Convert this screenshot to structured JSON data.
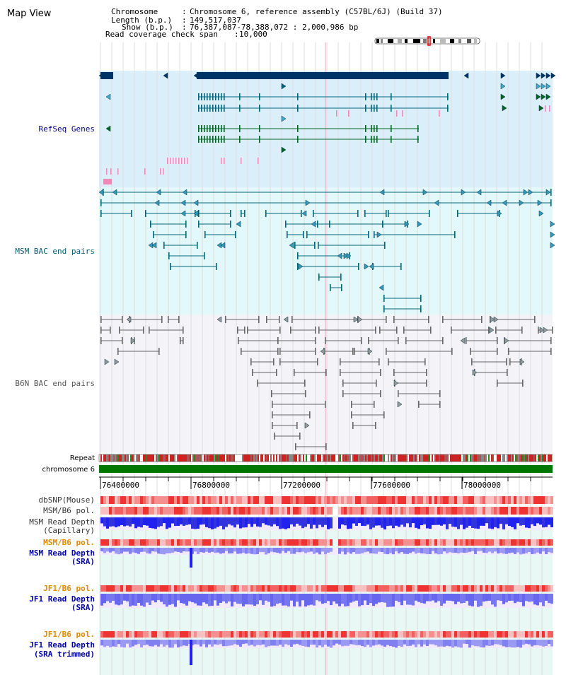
{
  "view_title": "Map View",
  "info": {
    "chromosome_key": "Chromosome",
    "chromosome_val": "Chromosome 6, reference assembly (C57BL/6J) (Build 37)",
    "length_key": "Length (b.p.)",
    "length_val": "149,517,037",
    "show_key": "Show (b.p.)",
    "show_val": "76,387,087-78,388,072 : 2,000,986 bp",
    "span_key": "Read coverage check span",
    "span_val": "10,000"
  },
  "tracks": {
    "refseq": "RefSeq Genes",
    "msm_bac": "MSM BAC end pairs",
    "b6n_bac": "B6N BAC end pairs",
    "repeat": "Repeat",
    "chromosome": "chromosome 6",
    "dbsnp": "dbSNP(Mouse)",
    "msm_pol_1": "MSM/B6 pol.",
    "msm_depth_cap_1": "MSM Read Depth",
    "msm_depth_cap_2": "(Capillary)",
    "msm_pol_2": "MSM/B6 pol.",
    "msm_depth_sra_1": "MSM Read Depth",
    "msm_depth_sra_2": "(SRA)",
    "jf1_pol_1": "JF1/B6 pol.",
    "jf1_depth_sra_1": "JF1 Read Depth",
    "jf1_depth_sra_2": "(SRA)",
    "jf1_pol_2": "JF1/B6 pol.",
    "jf1_depth_trim_1": "JF1 Read Depth",
    "jf1_depth_trim_2": "(SRA trimmed)"
  },
  "axis_ticks": [
    "76400000",
    "76800000",
    "77200000",
    "77600000",
    "78000000"
  ],
  "colors": {
    "refseq_bg": "#dbeffa",
    "msm_bg": "#e3f8fa",
    "b6n_bg": "#f3f3f8",
    "lower_bg": "#e8f8f4",
    "gene_navy": "#003366",
    "gene_teal": "#006680",
    "gene_green": "#006622",
    "bac_teal": "#00667a",
    "bac_gray": "#666666",
    "chrom_green": "#007700",
    "label_navy": "#000080",
    "label_teal": "#005a70",
    "label_gray": "#555555",
    "label_orange": "#e08a00",
    "label_blue": "#0000aa",
    "depth_blue": "#2222ee",
    "depth_light": "#8080f0",
    "pol_red": "#ee4444"
  }
}
